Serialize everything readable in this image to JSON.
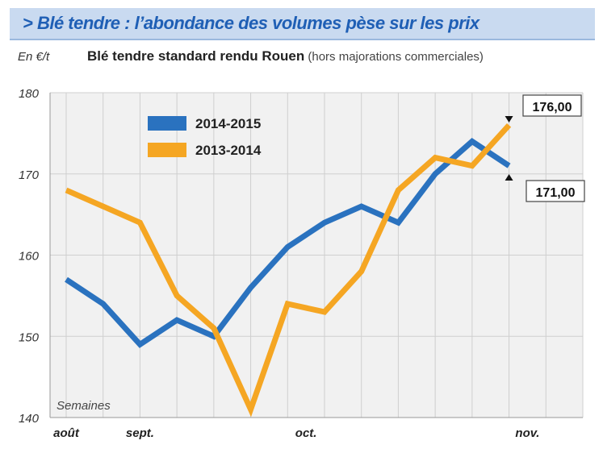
{
  "header": {
    "title": "> Blé tendre : l’abondance des volumes pèse sur les prix",
    "unit": "En €/t",
    "subtitle": "Blé tendre standard rendu Rouen",
    "subtitle_note": " (hors majorations commerciales)"
  },
  "colors": {
    "series_2014_2015": "#2a72bf",
    "series_2013_2014": "#f5a623",
    "plot_bg": "#f1f1f1",
    "header_bg": "#c9daf0",
    "title_text": "#1f5fb5"
  },
  "chart_data": {
    "type": "line",
    "title": "Blé tendre standard rendu Rouen",
    "ylabel": "En €/t",
    "xlabel": "Semaines",
    "ylim": [
      140,
      180
    ],
    "yticks": [
      140,
      150,
      160,
      170,
      180
    ],
    "x": [
      0,
      1,
      2,
      3,
      4,
      5,
      6,
      7,
      8,
      9,
      10,
      11,
      12,
      13,
      14
    ],
    "month_labels": [
      {
        "x": 0,
        "label": "août"
      },
      {
        "x": 2,
        "label": "sept."
      },
      {
        "x": 6.5,
        "label": "oct."
      },
      {
        "x": 12.5,
        "label": "nov."
      }
    ],
    "grid": true,
    "legend_position": "top-left",
    "series": [
      {
        "name": "2014-2015",
        "color": "#2a72bf",
        "values": [
          157,
          154,
          149,
          152,
          150,
          156,
          161,
          164,
          166,
          164,
          170,
          174,
          171,
          null,
          null
        ],
        "end_label": "171,00"
      },
      {
        "name": "2013-2014",
        "color": "#f5a623",
        "values": [
          168,
          166,
          164,
          155,
          151,
          141,
          154,
          153,
          158,
          168,
          172,
          171,
          176,
          null,
          null
        ],
        "end_label": "176,00"
      }
    ]
  }
}
